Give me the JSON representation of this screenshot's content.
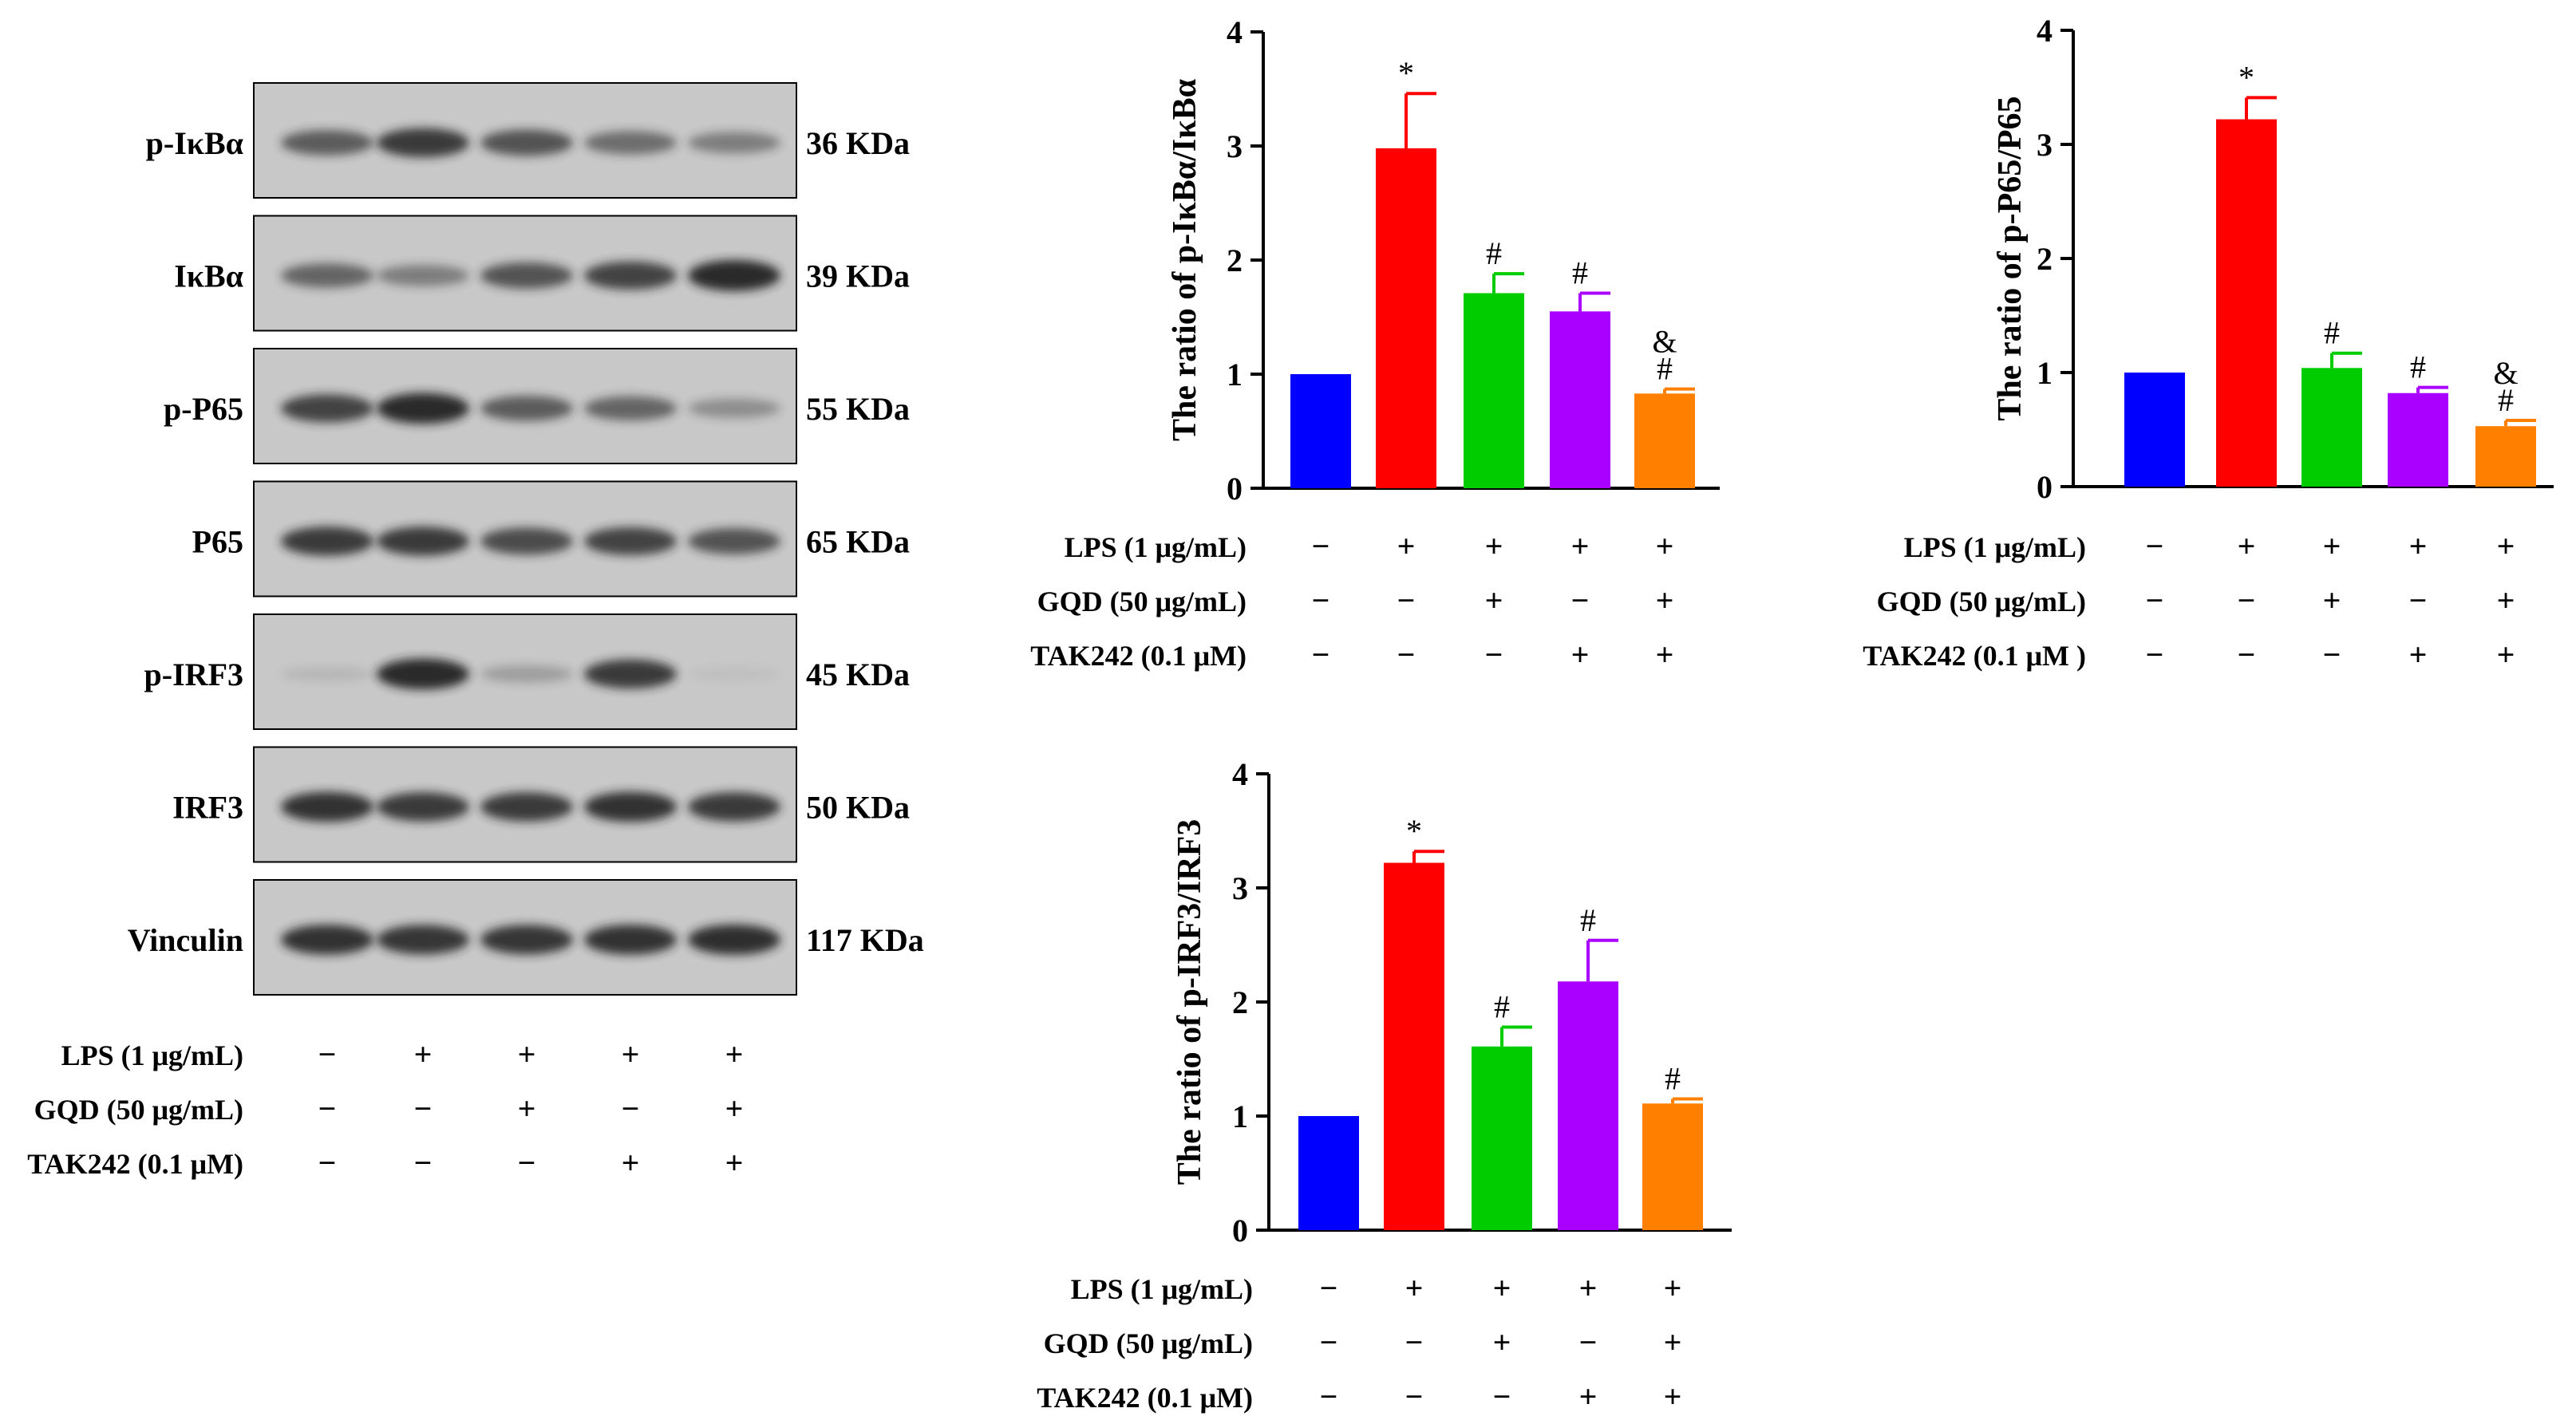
{
  "colors": {
    "control": "#0000ff",
    "lps": "#ff0000",
    "lps_gqd": "#00cc00",
    "lps_tak": "#aa00ff",
    "lps_gqd_tak": "#ff8000",
    "band": "#222222",
    "blot_bg": "#c8c8c8"
  },
  "western_blot": {
    "rows": [
      {
        "protein": "p-IκBα",
        "size": "36 KDa",
        "intensities": [
          0.65,
          0.85,
          0.7,
          0.55,
          0.45
        ]
      },
      {
        "protein": "IκBα",
        "size": "39 KDa",
        "intensities": [
          0.6,
          0.45,
          0.7,
          0.8,
          0.95
        ]
      },
      {
        "protein": "p-P65",
        "size": "55 KDa",
        "intensities": [
          0.8,
          0.95,
          0.65,
          0.6,
          0.35
        ]
      },
      {
        "protein": "P65",
        "size": "65 KDa",
        "intensities": [
          0.85,
          0.85,
          0.75,
          0.8,
          0.7
        ]
      },
      {
        "protein": "p-IRF3",
        "size": "45 KDa",
        "intensities": [
          0.1,
          0.95,
          0.25,
          0.85,
          0.05
        ]
      },
      {
        "protein": "IRF3",
        "size": "50 KDa",
        "intensities": [
          0.9,
          0.85,
          0.85,
          0.9,
          0.85
        ]
      },
      {
        "protein": "Vinculin",
        "size": "117 KDa",
        "intensities": [
          0.9,
          0.88,
          0.88,
          0.9,
          0.92
        ]
      }
    ],
    "treatments": [
      {
        "label": "LPS (1 μg/mL)",
        "signs": [
          "−",
          "+",
          "+",
          "+",
          "+"
        ]
      },
      {
        "label": "GQD (50 μg/mL)",
        "signs": [
          "−",
          "−",
          "+",
          "−",
          "+"
        ]
      },
      {
        "label": "TAK242 (0.1 μM)",
        "signs": [
          "−",
          "−",
          "−",
          "+",
          "+"
        ]
      }
    ]
  },
  "chart_data": [
    {
      "type": "bar",
      "ylabel": "The ratio of p-IκBα/IκBα",
      "ylim": [
        0,
        4
      ],
      "yticks": [
        "0",
        "1",
        "2",
        "3",
        "4"
      ],
      "values": [
        1.0,
        2.98,
        1.71,
        1.55,
        0.83
      ],
      "errors": [
        0,
        0.48,
        0.17,
        0.16,
        0.04
      ],
      "annotations": [
        "",
        "*",
        "#",
        "#",
        "&\n#"
      ],
      "treatments": [
        {
          "label": "LPS (1 μg/mL)",
          "signs": [
            "−",
            "+",
            "+",
            "+",
            "+"
          ]
        },
        {
          "label": "GQD (50 μg/mL)",
          "signs": [
            "−",
            "−",
            "+",
            "−",
            "+"
          ]
        },
        {
          "label": "TAK242 (0.1 μM)",
          "signs": [
            "−",
            "−",
            "−",
            "+",
            "+"
          ]
        }
      ]
    },
    {
      "type": "bar",
      "ylabel": "The ratio of p-P65/P65",
      "ylim": [
        0,
        4
      ],
      "yticks": [
        "0",
        "1",
        "2",
        "3",
        "4"
      ],
      "values": [
        1.0,
        3.22,
        1.04,
        0.82,
        0.53
      ],
      "errors": [
        0,
        0.19,
        0.13,
        0.05,
        0.05
      ],
      "annotations": [
        "",
        "*",
        "#",
        "#",
        "&\n#"
      ],
      "treatments": [
        {
          "label": "LPS (1 μg/mL)",
          "signs": [
            "−",
            "+",
            "+",
            "+",
            "+"
          ]
        },
        {
          "label": "GQD (50 μg/mL)",
          "signs": [
            "−",
            "−",
            "+",
            "−",
            "+"
          ]
        },
        {
          "label": "TAK242 (0.1 μM )",
          "signs": [
            "−",
            "−",
            "−",
            "+",
            "+"
          ]
        }
      ]
    },
    {
      "type": "bar",
      "ylabel": "The ratio of p-IRF3/IRF3",
      "ylim": [
        0,
        4
      ],
      "yticks": [
        "0",
        "1",
        "2",
        "3",
        "4"
      ],
      "values": [
        1.0,
        3.22,
        1.61,
        2.18,
        1.11
      ],
      "errors": [
        0,
        0.1,
        0.17,
        0.36,
        0.04
      ],
      "annotations": [
        "",
        "*",
        "#",
        "#",
        "#"
      ],
      "treatments": [
        {
          "label": "LPS (1 μg/mL)",
          "signs": [
            "−",
            "+",
            "+",
            "+",
            "+"
          ]
        },
        {
          "label": "GQD (50 μg/mL)",
          "signs": [
            "−",
            "−",
            "+",
            "−",
            "+"
          ]
        },
        {
          "label": "TAK242 (0.1 μM)",
          "signs": [
            "−",
            "−",
            "−",
            "+",
            "+"
          ]
        }
      ]
    }
  ]
}
